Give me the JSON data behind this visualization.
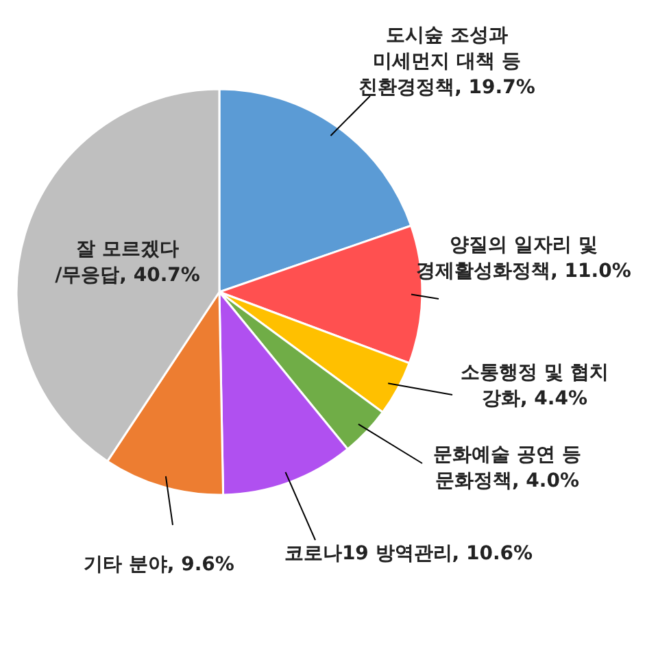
{
  "chart_data": {
    "type": "pie",
    "categories": [
      "도시숲 조성과\n미세먼지 대책 등\n친환경정책",
      "양질의 일자리 및\n경제활성화정책",
      "소통행정 및 협치\n강화",
      "문화예술 공연 등\n문화정책",
      "코로나19 방역관리",
      "기타 분야",
      "잘 모르겠다\n/무응답"
    ],
    "values": [
      19.7,
      11.0,
      4.4,
      4.0,
      10.6,
      9.6,
      40.7
    ],
    "value_labels": [
      "19.7%",
      "11.0%",
      "4.4%",
      "4.0%",
      "10.6%",
      "9.6%",
      "40.7%"
    ],
    "colors": [
      "#5b9bd5",
      "#ff5050",
      "#ffc000",
      "#70ad47",
      "#b050f0",
      "#ed7d31",
      "#bfbfbf"
    ]
  }
}
